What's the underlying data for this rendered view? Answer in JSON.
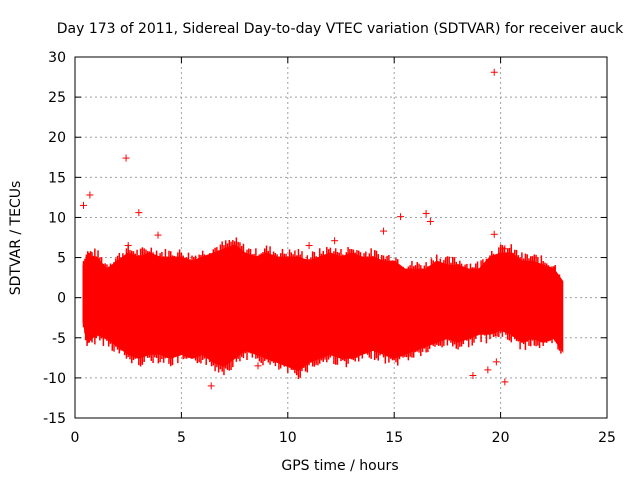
{
  "chart_data": {
    "type": "scatter",
    "title": "Day 173 of 2011, Sidereal Day-to-day VTEC variation (SDTVAR) for receiver auck",
    "xlabel": "GPS time / hours",
    "ylabel": "SDTVAR / TECUs",
    "xlim": [
      0,
      25
    ],
    "ylim": [
      -15,
      30
    ],
    "xticks": [
      0,
      5,
      10,
      15,
      20,
      25
    ],
    "yticks": [
      -15,
      -10,
      -5,
      0,
      5,
      10,
      15,
      20,
      25,
      30
    ],
    "grid": true,
    "marker": "+",
    "color": "#ff0000",
    "band": {
      "description": "dense scatter envelope of SDTVAR values (upper and lower extent in TECU vs GPS hour)",
      "x": [
        0.4,
        0.6,
        1.0,
        1.5,
        2.0,
        2.5,
        3.0,
        3.5,
        4.0,
        4.5,
        5.0,
        5.5,
        6.0,
        6.5,
        7.0,
        7.5,
        8.0,
        8.5,
        9.0,
        9.5,
        10.0,
        10.5,
        11.0,
        11.5,
        12.0,
        12.5,
        13.0,
        13.5,
        14.0,
        14.5,
        15.0,
        15.5,
        16.0,
        16.5,
        17.0,
        17.5,
        18.0,
        18.5,
        19.0,
        19.5,
        20.0,
        20.5,
        21.0,
        21.5,
        22.0,
        22.5,
        22.9
      ],
      "upper": [
        4.0,
        5.0,
        5.0,
        3.5,
        4.5,
        5.5,
        5.0,
        5.5,
        5.0,
        5.0,
        5.0,
        4.5,
        5.0,
        5.5,
        6.0,
        6.5,
        5.5,
        5.0,
        5.5,
        5.0,
        5.0,
        5.0,
        4.5,
        5.0,
        5.5,
        5.0,
        5.5,
        5.0,
        5.0,
        4.5,
        4.5,
        3.5,
        3.5,
        3.5,
        4.5,
        4.0,
        4.0,
        3.5,
        3.5,
        5.0,
        5.5,
        5.5,
        4.5,
        4.5,
        4.0,
        3.5,
        2.0
      ],
      "lower": [
        -3.0,
        -5.5,
        -4.5,
        -5.0,
        -6.0,
        -7.0,
        -7.5,
        -7.0,
        -7.0,
        -7.5,
        -7.0,
        -7.5,
        -7.0,
        -8.0,
        -8.5,
        -7.5,
        -6.5,
        -7.0,
        -7.5,
        -8.0,
        -8.5,
        -9.0,
        -8.0,
        -7.5,
        -7.0,
        -7.5,
        -7.5,
        -7.0,
        -6.5,
        -7.0,
        -7.5,
        -7.0,
        -6.5,
        -6.0,
        -5.5,
        -5.0,
        -5.5,
        -5.0,
        -4.5,
        -4.5,
        -4.0,
        -4.5,
        -5.5,
        -5.0,
        -5.5,
        -5.0,
        -6.5
      ]
    },
    "outliers": [
      {
        "x": 0.4,
        "y": 11.5
      },
      {
        "x": 0.7,
        "y": 12.8
      },
      {
        "x": 2.4,
        "y": 17.4
      },
      {
        "x": 3.0,
        "y": 10.6
      },
      {
        "x": 3.9,
        "y": 7.8
      },
      {
        "x": 11.0,
        "y": 6.5
      },
      {
        "x": 12.2,
        "y": 7.1
      },
      {
        "x": 15.3,
        "y": 10.1
      },
      {
        "x": 14.5,
        "y": 8.3
      },
      {
        "x": 16.5,
        "y": 10.5
      },
      {
        "x": 19.7,
        "y": 28.1
      },
      {
        "x": 19.7,
        "y": 7.9
      },
      {
        "x": 20.2,
        "y": 6.1
      },
      {
        "x": 18.7,
        "y": -9.7
      },
      {
        "x": 19.4,
        "y": -9.0
      },
      {
        "x": 19.8,
        "y": -8.0
      },
      {
        "x": 20.2,
        "y": -10.5
      },
      {
        "x": 6.4,
        "y": -11.0
      },
      {
        "x": 8.6,
        "y": -8.5
      },
      {
        "x": 2.5,
        "y": 6.5
      },
      {
        "x": 16.7,
        "y": 9.5
      }
    ]
  }
}
